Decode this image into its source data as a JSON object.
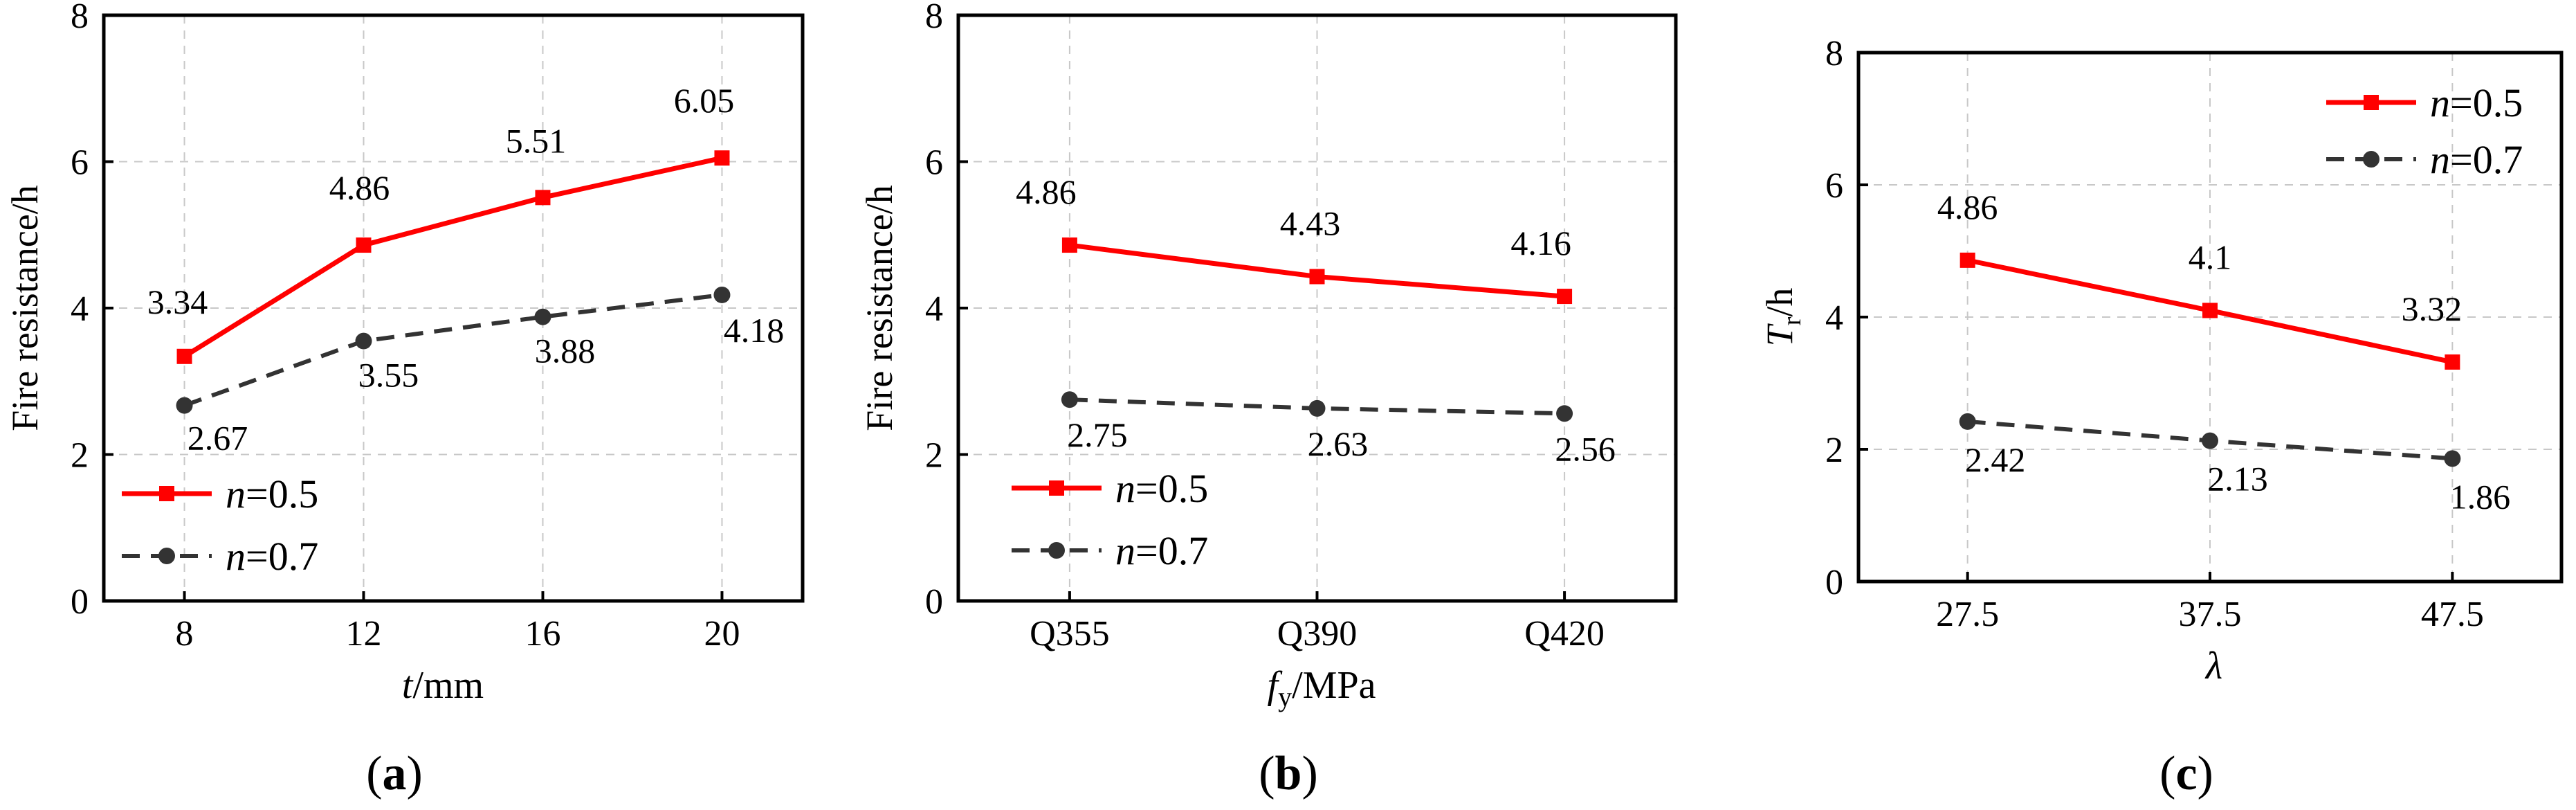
{
  "chart_data": [
    {
      "type": "line",
      "caption": "a",
      "xlabel_main": "t",
      "xlabel_unit": "/mm",
      "ylabel_text": "Fire resistance/h",
      "categories": [
        "8",
        "12",
        "16",
        "20"
      ],
      "ylim": [
        0,
        8
      ],
      "yticks": [
        "0",
        "2",
        "4",
        "6",
        "8"
      ],
      "grid": true,
      "legend_position": "bottom-left",
      "series": [
        {
          "name": "n=0.5",
          "n_symbol": "n",
          "n_value": "=0.5",
          "color": "#ff0000",
          "style": "solid",
          "marker": "square",
          "values": [
            3.34,
            4.86,
            5.51,
            6.05
          ],
          "labels": [
            "3.34",
            "4.86",
            "5.51",
            "6.05"
          ]
        },
        {
          "name": "n=0.7",
          "n_symbol": "n",
          "n_value": "=0.7",
          "color": "#333333",
          "style": "dashed",
          "marker": "circle",
          "values": [
            2.67,
            3.55,
            3.88,
            4.18
          ],
          "labels": [
            "2.67",
            "3.55",
            "3.88",
            "4.18"
          ]
        }
      ]
    },
    {
      "type": "line",
      "caption": "b",
      "xlabel_main": "f",
      "xlabel_sub": "y",
      "xlabel_unit": "/MPa",
      "ylabel_text": "Fire resistance/h",
      "categories": [
        "Q355",
        "Q390",
        "Q420"
      ],
      "ylim": [
        0,
        8
      ],
      "yticks": [
        "0",
        "2",
        "4",
        "6",
        "8"
      ],
      "grid": true,
      "legend_position": "bottom-left",
      "series": [
        {
          "name": "n=0.5",
          "n_symbol": "n",
          "n_value": "=0.5",
          "color": "#ff0000",
          "style": "solid",
          "marker": "square",
          "values": [
            4.86,
            4.43,
            4.16
          ],
          "labels": [
            "4.86",
            "4.43",
            "4.16"
          ]
        },
        {
          "name": "n=0.7",
          "n_symbol": "n",
          "n_value": "=0.7",
          "color": "#333333",
          "style": "dashed",
          "marker": "circle",
          "values": [
            2.75,
            2.63,
            2.56
          ],
          "labels": [
            "2.75",
            "2.63",
            "2.56"
          ]
        }
      ]
    },
    {
      "type": "line",
      "caption": "c",
      "xlabel_main": "λ",
      "ylabel_main": "T",
      "ylabel_sub": "r",
      "ylabel_unit": "/h",
      "categories": [
        "27.5",
        "37.5",
        "47.5"
      ],
      "ylim": [
        0,
        8
      ],
      "yticks": [
        "0",
        "2",
        "4",
        "6",
        "8"
      ],
      "grid": true,
      "legend_position": "top-right",
      "series": [
        {
          "name": "n=0.5",
          "n_symbol": "n",
          "n_value": "=0.5",
          "color": "#ff0000",
          "style": "solid",
          "marker": "square",
          "values": [
            4.86,
            4.1,
            3.32
          ],
          "labels": [
            "4.86",
            "4.1",
            "3.32"
          ]
        },
        {
          "name": "n=0.7",
          "n_symbol": "n",
          "n_value": "=0.7",
          "color": "#333333",
          "style": "dashed",
          "marker": "circle",
          "values": [
            2.42,
            2.13,
            1.86
          ],
          "labels": [
            "2.42",
            "2.13",
            "1.86"
          ]
        }
      ]
    }
  ]
}
